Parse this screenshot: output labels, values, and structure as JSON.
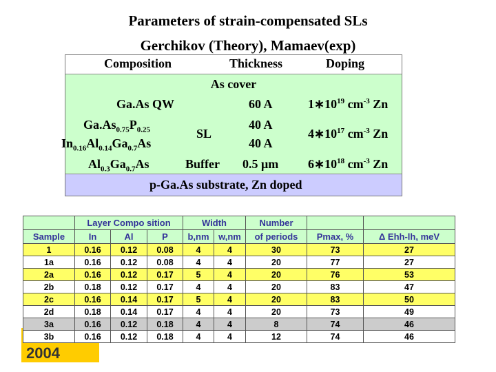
{
  "title": {
    "line1": "Parameters of strain-compensated SLs",
    "line2": "Gerchikov (Theory), Mamaev(exp)"
  },
  "structure": {
    "headers": {
      "composition": "Composition",
      "thickness": "Thickness",
      "doping": "Doping"
    },
    "cover": "As cover",
    "qw": {
      "label": "Ga.As QW",
      "thickness": "60 A",
      "doping_base": "1∗10",
      "doping_exp": "19",
      "doping_unit": " cm",
      "doping_unit_exp": "-3",
      "doping_el": " Zn"
    },
    "sl": {
      "label": "SL",
      "layer1": {
        "p1": "Ga.As",
        "s1": "0.75",
        "p2": "P",
        "s2": "0.25"
      },
      "layer2": {
        "p1": "In",
        "s1": "0.16",
        "p2": "Al",
        "s2": "0.14",
        "p3": "Ga",
        "s3": "0.7",
        "p4": "As"
      },
      "thickness1": "40 A",
      "thickness2": "40 A",
      "doping_base": "4∗10",
      "doping_exp": "17",
      "doping_unit": " cm",
      "doping_unit_exp": "-3",
      "doping_el": " Zn"
    },
    "buffer": {
      "comp": {
        "p1": "Al",
        "s1": "0.3",
        "p2": "Ga",
        "s2": "0.7",
        "p3": "As"
      },
      "label": "Buffer",
      "thickness": "0.5 μm",
      "doping_base": "6∗10",
      "doping_exp": "18",
      "doping_unit": " cm",
      "doping_unit_exp": "-3",
      "doping_el": " Zn"
    },
    "substrate": "p-Ga.As substrate, Zn doped"
  },
  "table": {
    "group_headers": {
      "layer": "Layer Compo sition",
      "width": "Width",
      "periods_top": "Number"
    },
    "columns": [
      "Sample",
      "In",
      "Al",
      "P",
      "b,nm",
      "w,nm",
      "of periods",
      "Pmax, %",
      "Δ Ehh-lh,  meV"
    ],
    "rows": [
      [
        "1",
        "0.16",
        "0.12",
        "0.08",
        "4",
        "4",
        "30",
        "73",
        "27"
      ],
      [
        "1a",
        "0.16",
        "0.12",
        "0.08",
        "4",
        "4",
        "20",
        "77",
        "27"
      ],
      [
        "2a",
        "0.16",
        "0.12",
        "0.17",
        "5",
        "4",
        "20",
        "76",
        "53"
      ],
      [
        "2b",
        "0.18",
        "0.12",
        "0.17",
        "4",
        "4",
        "20",
        "83",
        "47"
      ],
      [
        "2c",
        "0.16",
        "0.14",
        "0.17",
        "5",
        "4",
        "20",
        "83",
        "50"
      ],
      [
        "2d",
        "0.18",
        "0.14",
        "0.17",
        "4",
        "4",
        "20",
        "73",
        "49"
      ],
      [
        "3a",
        "0.16",
        "0.12",
        "0.18",
        "4",
        "4",
        "8",
        "74",
        "46"
      ],
      [
        "3b",
        "0.16",
        "0.12",
        "0.18",
        "4",
        "4",
        "12",
        "74",
        "46"
      ]
    ],
    "row_colors": [
      "#ffff66",
      "#ffffff",
      "#ffff66",
      "#ffffff",
      "#ffff66",
      "#ffffff",
      "#cccccc",
      "#ffffff"
    ]
  },
  "corner_text": "2004"
}
